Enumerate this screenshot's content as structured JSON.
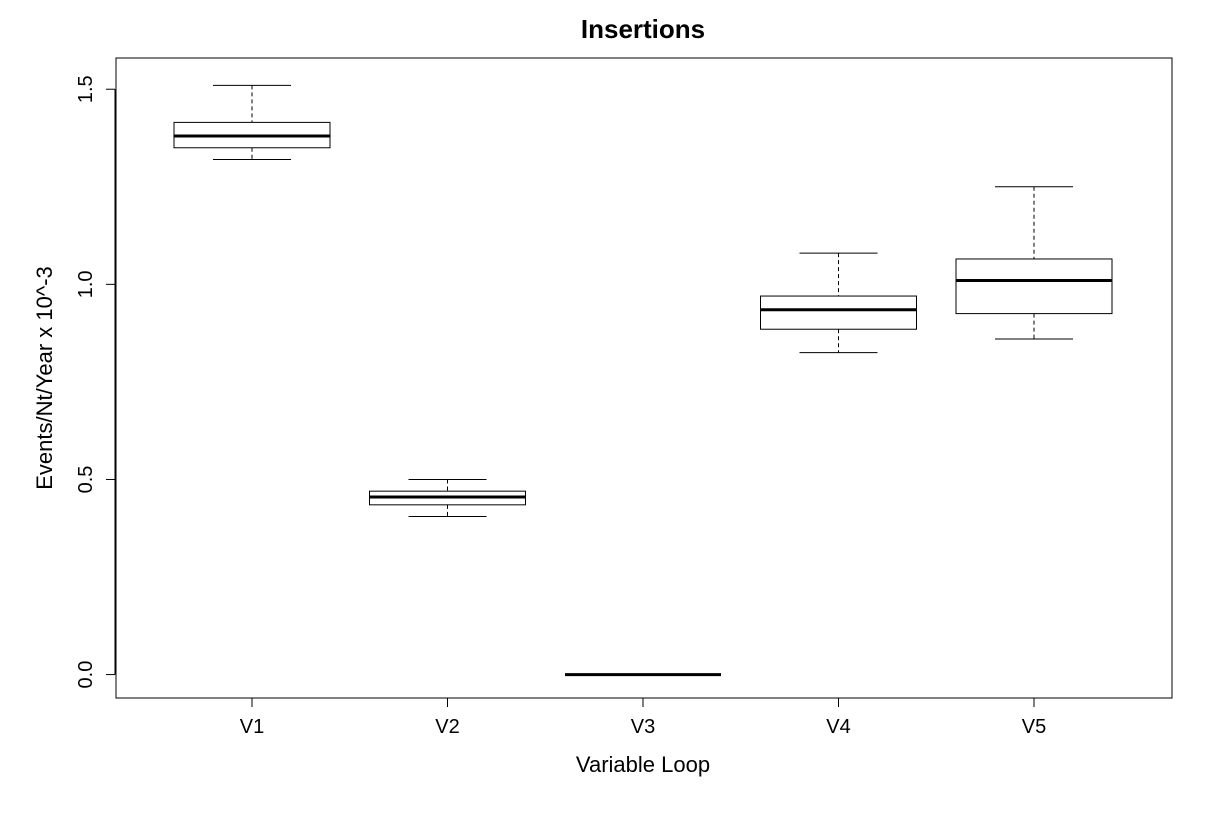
{
  "chart_data": {
    "type": "box",
    "title": "Insertions",
    "xlabel": "Variable Loop",
    "ylabel": "Events/Nt/Year x 10^-3",
    "categories": [
      "V1",
      "V2",
      "V3",
      "V4",
      "V5"
    ],
    "ylim": [
      -0.06,
      1.58
    ],
    "yticks": [
      0.0,
      0.5,
      1.0,
      1.5
    ],
    "ytick_labels": [
      "0.0",
      "0.5",
      "1.0",
      "1.5"
    ],
    "grid": false,
    "legend": "none",
    "boxes": [
      {
        "category": "V1",
        "min": 1.32,
        "q1": 1.35,
        "median": 1.38,
        "q3": 1.415,
        "max": 1.51
      },
      {
        "category": "V2",
        "min": 0.405,
        "q1": 0.435,
        "median": 0.455,
        "q3": 0.47,
        "max": 0.5
      },
      {
        "category": "V3",
        "min": 0.0,
        "q1": 0.0,
        "median": 0.0,
        "q3": 0.0,
        "max": 0.0
      },
      {
        "category": "V4",
        "min": 0.825,
        "q1": 0.885,
        "median": 0.935,
        "q3": 0.97,
        "max": 1.08
      },
      {
        "category": "V5",
        "min": 0.86,
        "q1": 0.925,
        "median": 1.01,
        "q3": 1.065,
        "max": 1.25
      }
    ],
    "colors": {
      "stroke": "#000000",
      "fill": "#ffffff"
    }
  }
}
